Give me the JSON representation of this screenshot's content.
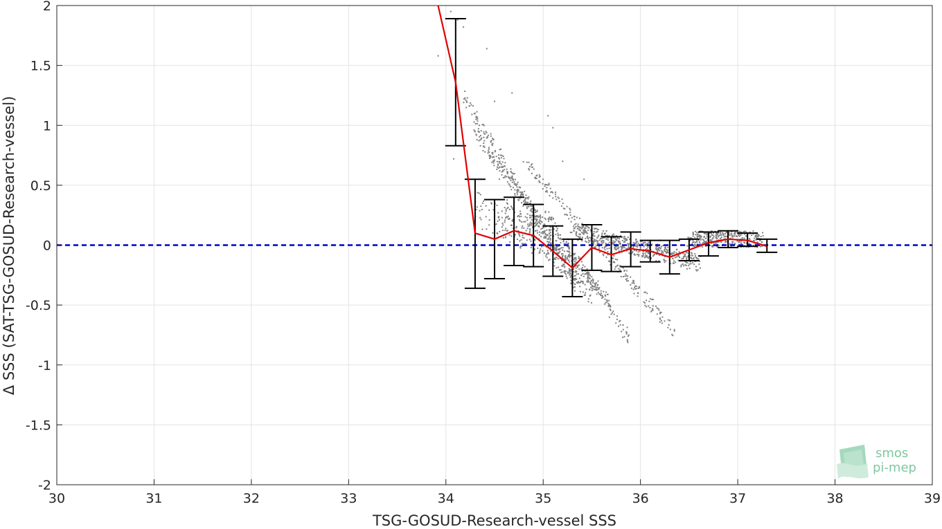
{
  "chart_data": {
    "type": "scatter",
    "xlabel": "TSG-GOSUD-Research-vessel SSS",
    "ylabel": "Δ SSS (SAT-TSG-GOSUD-Research-vessel)",
    "xlim": [
      30,
      39
    ],
    "ylim": [
      -2,
      2
    ],
    "xticks": [
      30,
      31,
      32,
      33,
      34,
      35,
      36,
      37,
      38,
      39
    ],
    "yticks": [
      -2,
      -1.5,
      -1,
      -0.5,
      0,
      0.5,
      1,
      1.5,
      2
    ],
    "xtick_labels": [
      "30",
      "31",
      "32",
      "33",
      "34",
      "35",
      "36",
      "37",
      "38",
      "39"
    ],
    "ytick_labels": [
      "-2",
      "-1.5",
      "-1",
      "-0.5",
      "0",
      "0.5",
      "1",
      "1.5",
      "2"
    ],
    "grid": true,
    "reference_line": {
      "y": 0,
      "color": "#0000cc",
      "style": "dashed"
    },
    "scatter_color": "#808080",
    "mean_line_color": "#e00000",
    "errorbar_color": "#000000",
    "scatter_groups": [
      {
        "x_start": 34.18,
        "x_end": 35.35,
        "y_start": 1.25,
        "y_end": -0.35,
        "count": 200,
        "spread": 0.05
      },
      {
        "x_start": 34.3,
        "x_end": 35.5,
        "y_start": 0.95,
        "y_end": -0.45,
        "count": 200,
        "spread": 0.05
      },
      {
        "x_start": 34.45,
        "x_end": 35.7,
        "y_start": 0.75,
        "y_end": -0.5,
        "count": 180,
        "spread": 0.05
      },
      {
        "x_start": 34.8,
        "x_end": 36.35,
        "y_start": 0.7,
        "y_end": -0.72,
        "count": 220,
        "spread": 0.05
      },
      {
        "x_start": 35.0,
        "x_end": 35.9,
        "y_start": 0.3,
        "y_end": -0.8,
        "count": 140,
        "spread": 0.05
      },
      {
        "x_start": 34.6,
        "x_end": 35.4,
        "y_start": 0.3,
        "y_end": -0.3,
        "count": 160,
        "spread": 0.1
      },
      {
        "x_start": 35.3,
        "x_end": 36.6,
        "y_start": 0.12,
        "y_end": -0.15,
        "count": 500,
        "spread": 0.07
      },
      {
        "x_start": 36.5,
        "x_end": 37.25,
        "y_start": 0.05,
        "y_end": 0.05,
        "count": 350,
        "spread": 0.07
      },
      {
        "x_start": 34.3,
        "x_end": 35.1,
        "y_start": 0.3,
        "y_end": 0.0,
        "count": 120,
        "spread": 0.15
      }
    ],
    "scatter_points": [
      {
        "x": 33.92,
        "y": 1.58
      },
      {
        "x": 34.05,
        "y": 1.95
      },
      {
        "x": 34.12,
        "y": 1.88
      },
      {
        "x": 34.18,
        "y": 1.82
      },
      {
        "x": 34.08,
        "y": 0.72
      },
      {
        "x": 34.42,
        "y": 1.64
      },
      {
        "x": 34.68,
        "y": 1.27
      },
      {
        "x": 35.05,
        "y": 1.08
      },
      {
        "x": 35.1,
        "y": 0.98
      },
      {
        "x": 34.55,
        "y": 0.55
      },
      {
        "x": 35.42,
        "y": 0.55
      },
      {
        "x": 35.2,
        "y": 0.7
      },
      {
        "x": 34.3,
        "y": 1.1
      },
      {
        "x": 34.5,
        "y": 1.2
      }
    ],
    "mean_line": {
      "name": "",
      "x": [
        33.92,
        34.1,
        34.3,
        34.5,
        34.7,
        34.9,
        35.1,
        35.3,
        35.5,
        35.7,
        35.9,
        36.1,
        36.3,
        36.5,
        36.7,
        36.9,
        37.1,
        37.3
      ],
      "y": [
        2.0,
        1.36,
        0.1,
        0.05,
        0.12,
        0.08,
        -0.05,
        -0.19,
        -0.02,
        -0.08,
        -0.03,
        -0.05,
        -0.1,
        -0.04,
        0.02,
        0.05,
        0.04,
        -0.01
      ]
    },
    "error_bars": [
      {
        "x": 34.1,
        "low": 0.83,
        "high": 1.89
      },
      {
        "x": 34.3,
        "low": -0.36,
        "high": 0.55
      },
      {
        "x": 34.5,
        "low": -0.28,
        "high": 0.38
      },
      {
        "x": 34.7,
        "low": -0.17,
        "high": 0.4
      },
      {
        "x": 34.9,
        "low": -0.18,
        "high": 0.34
      },
      {
        "x": 35.1,
        "low": -0.26,
        "high": 0.16
      },
      {
        "x": 35.3,
        "low": -0.43,
        "high": 0.05
      },
      {
        "x": 35.5,
        "low": -0.21,
        "high": 0.17
      },
      {
        "x": 35.7,
        "low": -0.22,
        "high": 0.07
      },
      {
        "x": 35.9,
        "low": -0.18,
        "high": 0.11
      },
      {
        "x": 36.1,
        "low": -0.14,
        "high": 0.04
      },
      {
        "x": 36.3,
        "low": -0.24,
        "high": 0.04
      },
      {
        "x": 36.5,
        "low": -0.13,
        "high": 0.05
      },
      {
        "x": 36.7,
        "low": -0.09,
        "high": 0.11
      },
      {
        "x": 36.9,
        "low": -0.02,
        "high": 0.12
      },
      {
        "x": 37.1,
        "low": -0.01,
        "high": 0.1
      },
      {
        "x": 37.3,
        "low": -0.06,
        "high": 0.05
      }
    ]
  },
  "logo": {
    "line1": "smos",
    "line2": "pi-mep"
  }
}
